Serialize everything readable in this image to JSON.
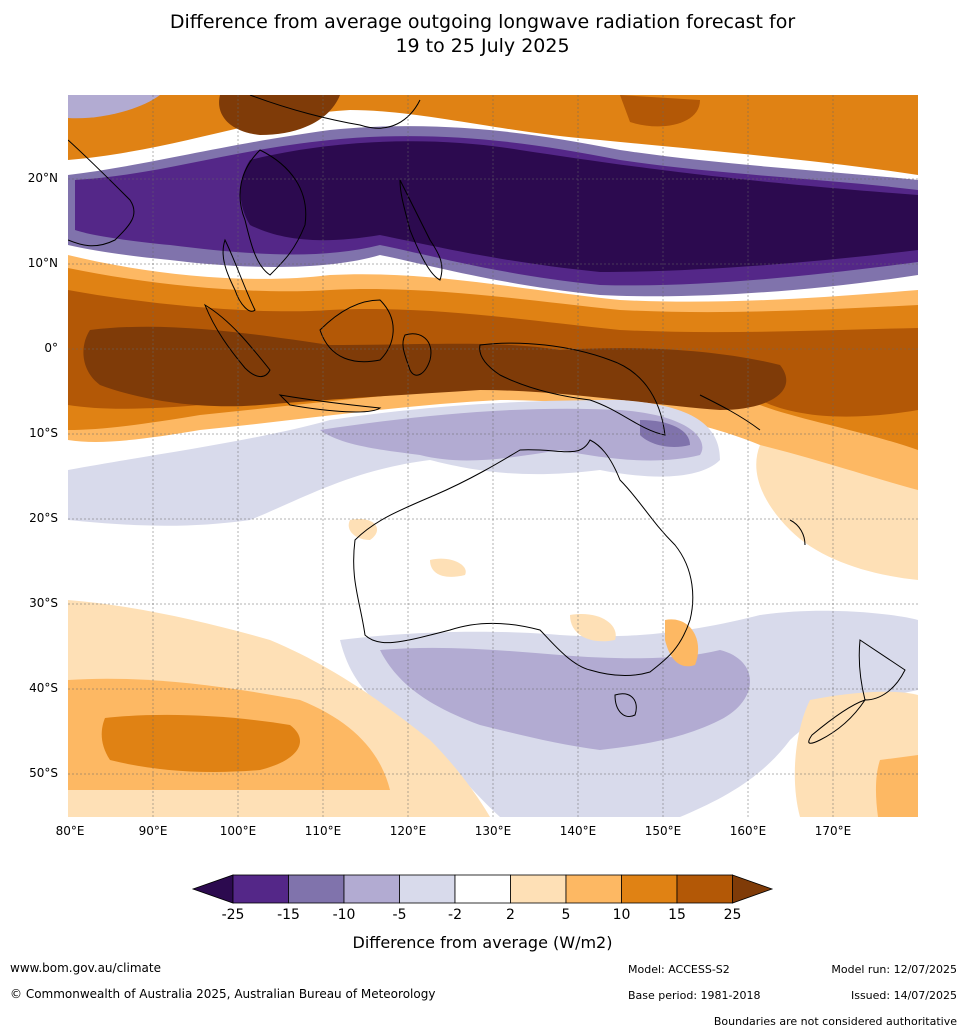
{
  "title": {
    "line1": "Difference from average outgoing longwave radiation forecast for",
    "line2": "19 to 25 July 2025"
  },
  "axes": {
    "lat_labels": [
      "20°N",
      "10°N",
      "0°",
      "10°S",
      "20°S",
      "30°S",
      "40°S",
      "50°S"
    ],
    "lon_labels": [
      "80°E",
      "90°E",
      "100°E",
      "110°E",
      "120°E",
      "130°E",
      "140°E",
      "150°E",
      "160°E",
      "170°E"
    ]
  },
  "colorbar": {
    "ticks": [
      "-25",
      "-15",
      "-10",
      "-5",
      "-2",
      "2",
      "5",
      "10",
      "15",
      "25"
    ],
    "colors": {
      "lt_-25": "#2c0a4f",
      "-25_-15": "#542788",
      "-15_-10": "#8073ac",
      "-10_-5": "#b2abd2",
      "-5_-2": "#d8daeb",
      "-2_2": "#ffffff",
      "2_5": "#fee0b6",
      "5_10": "#fdb863",
      "10_15": "#e08214",
      "15_25": "#b35806",
      "gt_25": "#7f3b08"
    },
    "title": "Difference from average (W/m2)"
  },
  "footer": {
    "website": "www.bom.gov.au/climate",
    "copyright": "© Commonwealth of Australia 2025, Australian Bureau of Meteorology",
    "model": "Model: ACCESS-S2",
    "base_period": "Base period: 1981-2018",
    "model_run": "Model run: 12/07/2025",
    "issued": "Issued: 14/07/2025",
    "disclaimer": "Boundaries are not considered authoritative"
  }
}
